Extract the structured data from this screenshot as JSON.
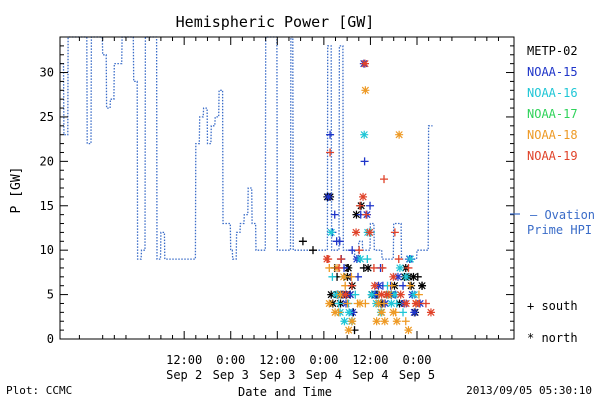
{
  "chart_data": {
    "type": "scatter",
    "title": "Hemispheric Power [GW]",
    "xlabel": "Date and Time",
    "ylabel": "P [GW]",
    "x_unit": "hours since 2013-09-01 00:00 UT",
    "xlim": [
      4,
      121
    ],
    "ylim": [
      0,
      34
    ],
    "yticks": [
      0,
      5,
      10,
      15,
      20,
      25,
      30
    ],
    "xticks": [
      {
        "t": 36,
        "time": "12:00",
        "date": "Sep 2"
      },
      {
        "t": 48,
        "time": "0:00",
        "date": "Sep 3"
      },
      {
        "t": 60,
        "time": "12:00",
        "date": "Sep 3"
      },
      {
        "t": 72,
        "time": "0:00",
        "date": "Sep 4"
      },
      {
        "t": 84,
        "time": "12:00",
        "date": "Sep 4"
      },
      {
        "t": 96,
        "time": "0:00",
        "date": "Sep 5"
      }
    ],
    "legend": {
      "satellites": [
        {
          "name": "METP-02",
          "color": "#000000"
        },
        {
          "name": "NOAA-15",
          "color": "#1f35c9"
        },
        {
          "name": "NOAA-16",
          "color": "#1fc6d6"
        },
        {
          "name": "NOAA-17",
          "color": "#2fd35a"
        },
        {
          "name": "NOAA-18",
          "color": "#ee9a25"
        },
        {
          "name": "NOAA-19",
          "color": "#e0432a"
        }
      ],
      "ovation_label_1": "— Ovation",
      "ovation_label_2": "Prime HPI",
      "ovation_color": "#3a6cc8",
      "south_label": "+ south",
      "north_label": "* north"
    },
    "ovation_series": {
      "name": "Ovation Prime HPI",
      "style": "dotted-step",
      "color": "#3a6cc8",
      "points": [
        [
          4,
          31
        ],
        [
          4.9,
          31
        ],
        [
          5,
          23
        ],
        [
          6,
          23
        ],
        [
          6.1,
          34
        ],
        [
          10.9,
          34
        ],
        [
          11,
          22
        ],
        [
          12,
          22
        ],
        [
          12.1,
          34
        ],
        [
          14.9,
          34
        ],
        [
          15,
          32
        ],
        [
          15.9,
          32
        ],
        [
          16,
          26
        ],
        [
          16.9,
          26
        ],
        [
          17,
          27
        ],
        [
          17.9,
          27
        ],
        [
          18,
          31
        ],
        [
          19.9,
          31
        ],
        [
          20,
          34
        ],
        [
          22.9,
          34
        ],
        [
          23,
          29
        ],
        [
          23.9,
          29
        ],
        [
          24,
          9
        ],
        [
          24.9,
          9
        ],
        [
          25,
          10
        ],
        [
          25.9,
          10
        ],
        [
          26,
          34
        ],
        [
          28.9,
          34
        ],
        [
          29,
          9
        ],
        [
          29.9,
          9
        ],
        [
          30,
          12
        ],
        [
          30.9,
          12
        ],
        [
          31,
          9
        ],
        [
          38.9,
          9
        ],
        [
          39,
          22
        ],
        [
          39.9,
          22
        ],
        [
          40,
          25
        ],
        [
          40.9,
          25
        ],
        [
          41,
          26
        ],
        [
          41.9,
          26
        ],
        [
          42,
          22
        ],
        [
          42.9,
          22
        ],
        [
          43,
          24
        ],
        [
          43.9,
          24
        ],
        [
          44,
          25
        ],
        [
          44.9,
          25
        ],
        [
          45,
          28
        ],
        [
          45.9,
          28
        ],
        [
          46,
          13
        ],
        [
          47.9,
          13
        ],
        [
          48,
          10
        ],
        [
          48.4,
          10
        ],
        [
          48.5,
          9
        ],
        [
          49.4,
          9
        ],
        [
          49.5,
          12
        ],
        [
          50.4,
          12
        ],
        [
          50.5,
          13
        ],
        [
          51.4,
          13
        ],
        [
          51.5,
          14
        ],
        [
          52.4,
          14
        ],
        [
          52.5,
          17
        ],
        [
          53.4,
          17
        ],
        [
          53.5,
          13
        ],
        [
          54.4,
          13
        ],
        [
          54.5,
          10
        ],
        [
          56.9,
          10
        ],
        [
          57,
          34
        ],
        [
          59.9,
          34
        ],
        [
          60,
          10
        ],
        [
          63.4,
          10
        ],
        [
          63.5,
          34
        ],
        [
          64,
          34
        ],
        [
          64.1,
          10
        ],
        [
          72.9,
          10
        ],
        [
          73,
          33
        ],
        [
          73.9,
          33
        ],
        [
          74,
          10
        ],
        [
          75.9,
          10
        ],
        [
          76,
          33
        ],
        [
          76.9,
          33
        ],
        [
          77,
          10
        ],
        [
          79.9,
          10
        ],
        [
          80,
          9
        ],
        [
          80.9,
          9
        ],
        [
          81,
          11
        ],
        [
          81.9,
          11
        ],
        [
          82,
          10
        ],
        [
          83.9,
          10
        ],
        [
          84,
          13
        ],
        [
          84.9,
          13
        ],
        [
          85,
          10
        ],
        [
          86.9,
          10
        ],
        [
          87,
          9
        ],
        [
          89.9,
          9
        ],
        [
          90,
          13
        ],
        [
          91.9,
          13
        ],
        [
          92,
          9
        ],
        [
          95.9,
          9
        ],
        [
          96,
          10
        ],
        [
          98.9,
          10
        ],
        [
          99,
          24
        ],
        [
          100,
          24
        ]
      ]
    },
    "satellite_series": [
      {
        "name": "METP-02",
        "color": "#000000",
        "south": [
          [
            66.6,
            11
          ],
          [
            69.2,
            10
          ],
          [
            74.8,
            8
          ],
          [
            75.4,
            7
          ],
          [
            78,
            8
          ],
          [
            79.6,
            3
          ],
          [
            79.9,
            1
          ],
          [
            82.3,
            8
          ],
          [
            85.9,
            5
          ],
          [
            87,
            4
          ],
          [
            96.2,
            7
          ],
          [
            97.3,
            6
          ]
        ],
        "north": [
          [
            72.9,
            16
          ],
          [
            73.6,
            16
          ],
          [
            73.9,
            5
          ],
          [
            74.3,
            4
          ],
          [
            75.6,
            5
          ],
          [
            76.3,
            4
          ],
          [
            76.7,
            5
          ],
          [
            77.8,
            5
          ],
          [
            78.1,
            7
          ],
          [
            78.3,
            8
          ],
          [
            78.8,
            5
          ],
          [
            79.3,
            6
          ],
          [
            80.4,
            14
          ],
          [
            81.6,
            15
          ],
          [
            83.4,
            8
          ],
          [
            84.4,
            5
          ],
          [
            85.5,
            5
          ],
          [
            86.7,
            4
          ],
          [
            89.4,
            5
          ],
          [
            90.2,
            6
          ],
          [
            91.5,
            4
          ],
          [
            92.8,
            7
          ],
          [
            93.1,
            8
          ],
          [
            93.9,
            7
          ],
          [
            94.5,
            6
          ],
          [
            95.1,
            7
          ],
          [
            95.5,
            3
          ],
          [
            97.3,
            6
          ]
        ]
      },
      {
        "name": "NOAA-15",
        "color": "#1f35c9",
        "south": [
          [
            73.6,
            23
          ],
          [
            74.2,
            12
          ],
          [
            74.8,
            14
          ],
          [
            75.3,
            11
          ],
          [
            76.1,
            11
          ],
          [
            76.5,
            9
          ],
          [
            77.2,
            8
          ],
          [
            78.9,
            7
          ],
          [
            79.3,
            10
          ],
          [
            80.8,
            7
          ],
          [
            81.5,
            14
          ],
          [
            82.5,
            20
          ],
          [
            83.9,
            15
          ],
          [
            85,
            5
          ],
          [
            86.6,
            8
          ],
          [
            87.2,
            6
          ],
          [
            89.2,
            6
          ],
          [
            90.5,
            5
          ],
          [
            92.4,
            6
          ],
          [
            94.4,
            9
          ]
        ],
        "north": [
          [
            73.2,
            16
          ],
          [
            76.3,
            5
          ],
          [
            77.1,
            5
          ],
          [
            77.7,
            4
          ],
          [
            78.8,
            5
          ],
          [
            79.4,
            3
          ],
          [
            80.5,
            9
          ],
          [
            82.3,
            31
          ],
          [
            83.1,
            14
          ],
          [
            85.3,
            5
          ],
          [
            86.1,
            6
          ],
          [
            87.8,
            4
          ],
          [
            89.3,
            5
          ],
          [
            91.1,
            7
          ],
          [
            92.7,
            4
          ],
          [
            94.1,
            9
          ],
          [
            94.8,
            5
          ],
          [
            95.3,
            3
          ],
          [
            96.8,
            4
          ]
        ]
      },
      {
        "name": "NOAA-16",
        "color": "#1fc6d6",
        "south": [
          [
            74.2,
            7
          ],
          [
            75.8,
            4
          ],
          [
            77.1,
            7
          ],
          [
            78.3,
            4
          ],
          [
            80.1,
            5
          ],
          [
            83.2,
            9
          ],
          [
            84.1,
            12
          ],
          [
            86.1,
            5
          ],
          [
            88.4,
            6
          ],
          [
            90.8,
            4
          ],
          [
            92.4,
            3
          ]
        ],
        "north": [
          [
            73.9,
            12
          ],
          [
            75.2,
            5
          ],
          [
            76.2,
            3
          ],
          [
            77.3,
            2
          ],
          [
            78.5,
            3
          ],
          [
            79.2,
            2
          ],
          [
            81.4,
            9
          ],
          [
            82.4,
            23
          ],
          [
            83.3,
            12
          ],
          [
            84.3,
            5
          ],
          [
            85.5,
            4
          ],
          [
            86.7,
            3
          ],
          [
            88.5,
            5
          ],
          [
            89.4,
            4
          ],
          [
            90.3,
            5
          ],
          [
            91.6,
            8
          ],
          [
            93.2,
            7
          ],
          [
            94.3,
            9
          ],
          [
            95.3,
            5
          ]
        ]
      },
      {
        "name": "NOAA-17",
        "color": "#2fd35a",
        "south": [],
        "north": []
      },
      {
        "name": "NOAA-18",
        "color": "#ee9a25",
        "south": [
          [
            73.4,
            8
          ],
          [
            75.8,
            3
          ],
          [
            77.5,
            6
          ],
          [
            78.1,
            4
          ],
          [
            79.1,
            7
          ],
          [
            80.7,
            4
          ],
          [
            82.7,
            4
          ],
          [
            86.2,
            5
          ],
          [
            87.5,
            4
          ],
          [
            89.5,
            6
          ],
          [
            90.5,
            3
          ],
          [
            93.1,
            2
          ],
          [
            94.2,
            6
          ],
          [
            96.5,
            5
          ]
        ],
        "north": [
          [
            73.4,
            4
          ],
          [
            74.9,
            3
          ],
          [
            75.4,
            8
          ],
          [
            76.3,
            5
          ],
          [
            77.1,
            7
          ],
          [
            78.4,
            1
          ],
          [
            79.3,
            2
          ],
          [
            81.3,
            4
          ],
          [
            82.7,
            28
          ],
          [
            85.6,
            2
          ],
          [
            86.1,
            4
          ],
          [
            86.9,
            3
          ],
          [
            87.7,
            2
          ],
          [
            88.7,
            5
          ],
          [
            89.9,
            3
          ],
          [
            90.8,
            2
          ],
          [
            91.4,
            23
          ],
          [
            93.8,
            1
          ],
          [
            95.8,
            4
          ]
        ]
      },
      {
        "name": "NOAA-19",
        "color": "#e0432a",
        "south": [
          [
            73.1,
            9
          ],
          [
            73.6,
            21
          ],
          [
            75.9,
            8
          ],
          [
            76.4,
            9
          ],
          [
            79.2,
            6
          ],
          [
            81.1,
            10
          ],
          [
            81.3,
            15
          ],
          [
            82.9,
            14
          ],
          [
            84.9,
            8
          ],
          [
            87.1,
            8
          ],
          [
            87.5,
            18
          ],
          [
            90.3,
            12
          ],
          [
            91.3,
            9
          ],
          [
            93.8,
            8
          ],
          [
            96.6,
            4
          ],
          [
            98.3,
            4
          ]
        ],
        "north": [
          [
            72.8,
            9
          ],
          [
            77.6,
            5
          ],
          [
            80.3,
            12
          ],
          [
            82.1,
            16
          ],
          [
            82.6,
            31
          ],
          [
            83.8,
            12
          ],
          [
            85.1,
            6
          ],
          [
            86.9,
            5
          ],
          [
            88.2,
            5
          ],
          [
            89.9,
            7
          ],
          [
            91.8,
            5
          ],
          [
            93.2,
            4
          ],
          [
            95.7,
            4
          ],
          [
            99.6,
            3
          ]
        ]
      }
    ]
  },
  "footer": {
    "plot_credit": "Plot: CCMC",
    "timestamp": "2013/09/05 05:30:10"
  }
}
